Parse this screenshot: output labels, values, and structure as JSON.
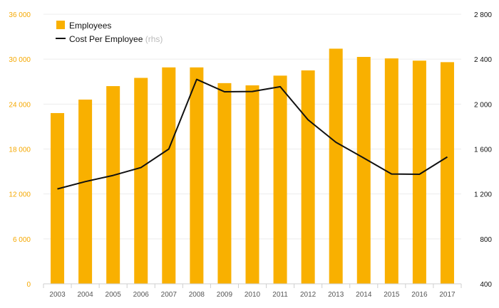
{
  "chart_data": {
    "type": "bar",
    "categories": [
      "2003",
      "2004",
      "2005",
      "2006",
      "2007",
      "2008",
      "2009",
      "2010",
      "2011",
      "2012",
      "2013",
      "2014",
      "2015",
      "2016",
      "2017"
    ],
    "series": [
      {
        "name": "Employees",
        "type": "bar",
        "axis": "left",
        "color": "#f9b000",
        "values": [
          22800,
          24600,
          26400,
          27500,
          28900,
          28900,
          26800,
          26500,
          27800,
          28500,
          31400,
          30300,
          30100,
          29800,
          29600
        ]
      },
      {
        "name": "Cost Per Employee",
        "name_suffix": "(rhs)",
        "type": "line",
        "axis": "right",
        "color": "#111111",
        "values": [
          1245,
          1310,
          1365,
          1435,
          1600,
          2220,
          2110,
          2112,
          2155,
          1860,
          1660,
          1520,
          1378,
          1375,
          1530
        ]
      }
    ],
    "y_left": {
      "ylim": [
        0,
        36000
      ],
      "ticks": [
        0,
        6000,
        12000,
        18000,
        24000,
        30000,
        36000
      ],
      "tick_labels": [
        "0",
        "6 000",
        "12 000",
        "18 000",
        "24 000",
        "30 000",
        "36 000"
      ],
      "color": "#f5a800"
    },
    "y_right": {
      "ylim": [
        400,
        2800
      ],
      "ticks": [
        400,
        800,
        1200,
        1600,
        2000,
        2400,
        2800
      ],
      "tick_labels": [
        "400",
        "800",
        "1 200",
        "1 600",
        "2 000",
        "2 400",
        "2 800"
      ],
      "color": "#111111"
    },
    "legend": {
      "position": "top-left",
      "entries": [
        {
          "label": "Employees",
          "suffix": "",
          "marker": "square"
        },
        {
          "label": "Cost Per Employee",
          "suffix": "(rhs)",
          "marker": "line"
        }
      ]
    },
    "grid": true,
    "title": "",
    "xlabel": "",
    "ylabel": ""
  }
}
